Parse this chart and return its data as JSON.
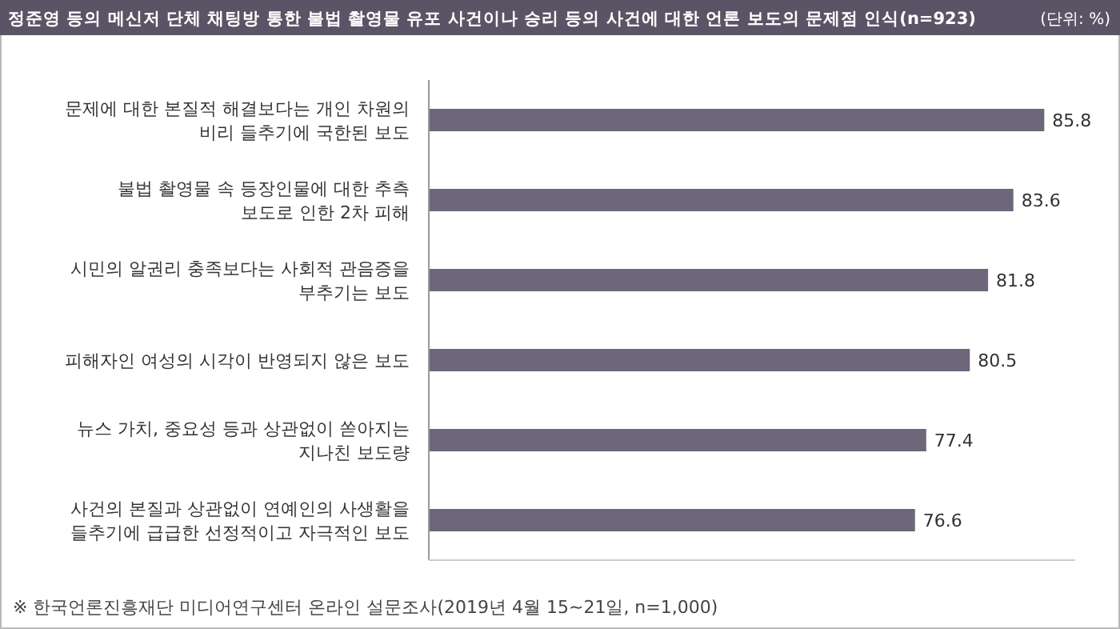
{
  "chart_data": {
    "type": "bar",
    "orientation": "horizontal",
    "title": "정준영 등의 메신저 단체 채팅방 통한 불법 촬영물 유포 사건이나 승리 등의 사건에 대한 언론 보도의 문제점 인식(n=923)",
    "categories": [
      "문제에 대한 본질적 해결보다는 개인 차원의\n비리 들추기에 국한된 보도",
      "불법 촬영물 속 등장인물에 대한 추측\n보도로 인한 2차 피해",
      "시민의 알권리 충족보다는 사회적 관음증을\n부추기는 보도",
      "피해자인 여성의 시각이 반영되지 않은 보도",
      "뉴스 가치, 중요성 등과 상관없이 쏟아지는\n지나친 보도량",
      "사건의 본질과 상관없이 연예인의 사생활을\n들추기에 급급한 선정적이고 자극적인 보도"
    ],
    "values": [
      85.8,
      83.6,
      81.8,
      80.5,
      77.4,
      76.6
    ],
    "color": "#6e6679",
    "xlim": [
      42,
      88
    ],
    "tick_labels": false,
    "data_labels": true,
    "annotations": [
      "(단위: %)",
      "※ 한국언론진흥재단 미디어연구센터 온라인 설문조사(2019년 4월 15~21일, n=1,000)"
    ]
  }
}
